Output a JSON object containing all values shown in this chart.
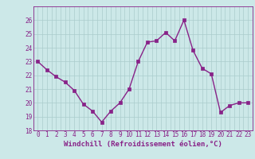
{
  "x": [
    0,
    1,
    2,
    3,
    4,
    5,
    6,
    7,
    8,
    9,
    10,
    11,
    12,
    13,
    14,
    15,
    16,
    17,
    18,
    19,
    20,
    21,
    22,
    23
  ],
  "y": [
    23.0,
    22.4,
    21.9,
    21.5,
    20.9,
    19.9,
    19.4,
    18.6,
    19.4,
    20.0,
    21.0,
    23.0,
    24.4,
    24.5,
    25.1,
    24.5,
    26.0,
    23.8,
    22.5,
    22.1,
    19.3,
    19.8,
    20.0,
    20.0
  ],
  "line_color": "#882288",
  "marker": "s",
  "marker_size": 2.2,
  "bg_color": "#cce8e8",
  "grid_color": "#aacccc",
  "xlabel": "Windchill (Refroidissement éolien,°C)",
  "xlabel_color": "#882288",
  "tick_color": "#882288",
  "ylim": [
    18,
    27
  ],
  "yticks": [
    18,
    19,
    20,
    21,
    22,
    23,
    24,
    25,
    26
  ],
  "xticks": [
    0,
    1,
    2,
    3,
    4,
    5,
    6,
    7,
    8,
    9,
    10,
    11,
    12,
    13,
    14,
    15,
    16,
    17,
    18,
    19,
    20,
    21,
    22,
    23
  ],
  "tick_fontsize": 5.5,
  "xlabel_fontsize": 6.5,
  "line_width": 1.0
}
